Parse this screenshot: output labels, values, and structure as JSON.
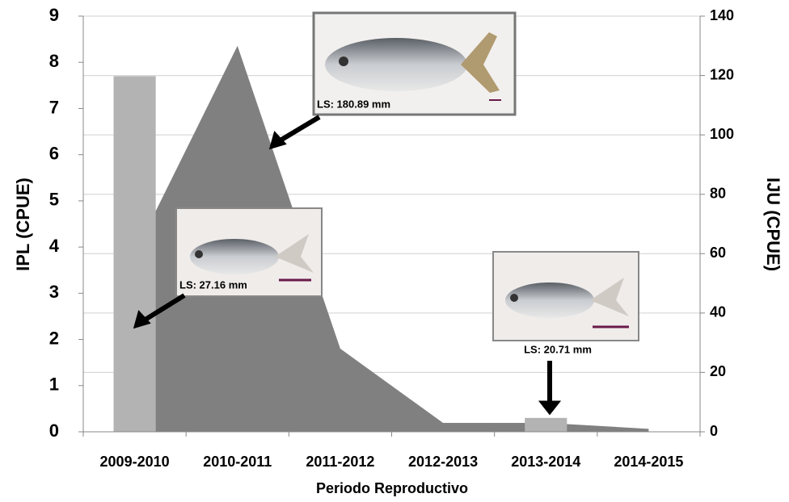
{
  "chart_data": {
    "type": "combo",
    "categories": [
      "2009-2010",
      "2010-2011",
      "2011-2012",
      "2012-2013",
      "2013-2014",
      "2014-2015"
    ],
    "series": [
      {
        "type": "bar",
        "color": "#b3b3b3",
        "values": [
          7.7,
          0,
          0,
          0,
          0.3,
          0
        ]
      },
      {
        "type": "area",
        "color": "#808080",
        "axis": "y2",
        "values": [
          60,
          130,
          28,
          3,
          3,
          1
        ]
      }
    ],
    "ylabel": "IPL (CPUE)",
    "y2label": "IJU (CPUE)",
    "xlabel": "Periodo Reproductivo",
    "ylim": [
      0,
      9
    ],
    "yticks": [
      0,
      1,
      2,
      3,
      4,
      5,
      6,
      7,
      8,
      9
    ],
    "y2lim": [
      0,
      140
    ],
    "y2ticks": [
      0,
      20,
      40,
      60,
      80,
      100,
      120,
      140
    ],
    "grid": true,
    "annotations": [
      "LS: 180.89 mm",
      "LS: 27.16 mm",
      "LS: 20.71 mm"
    ]
  }
}
